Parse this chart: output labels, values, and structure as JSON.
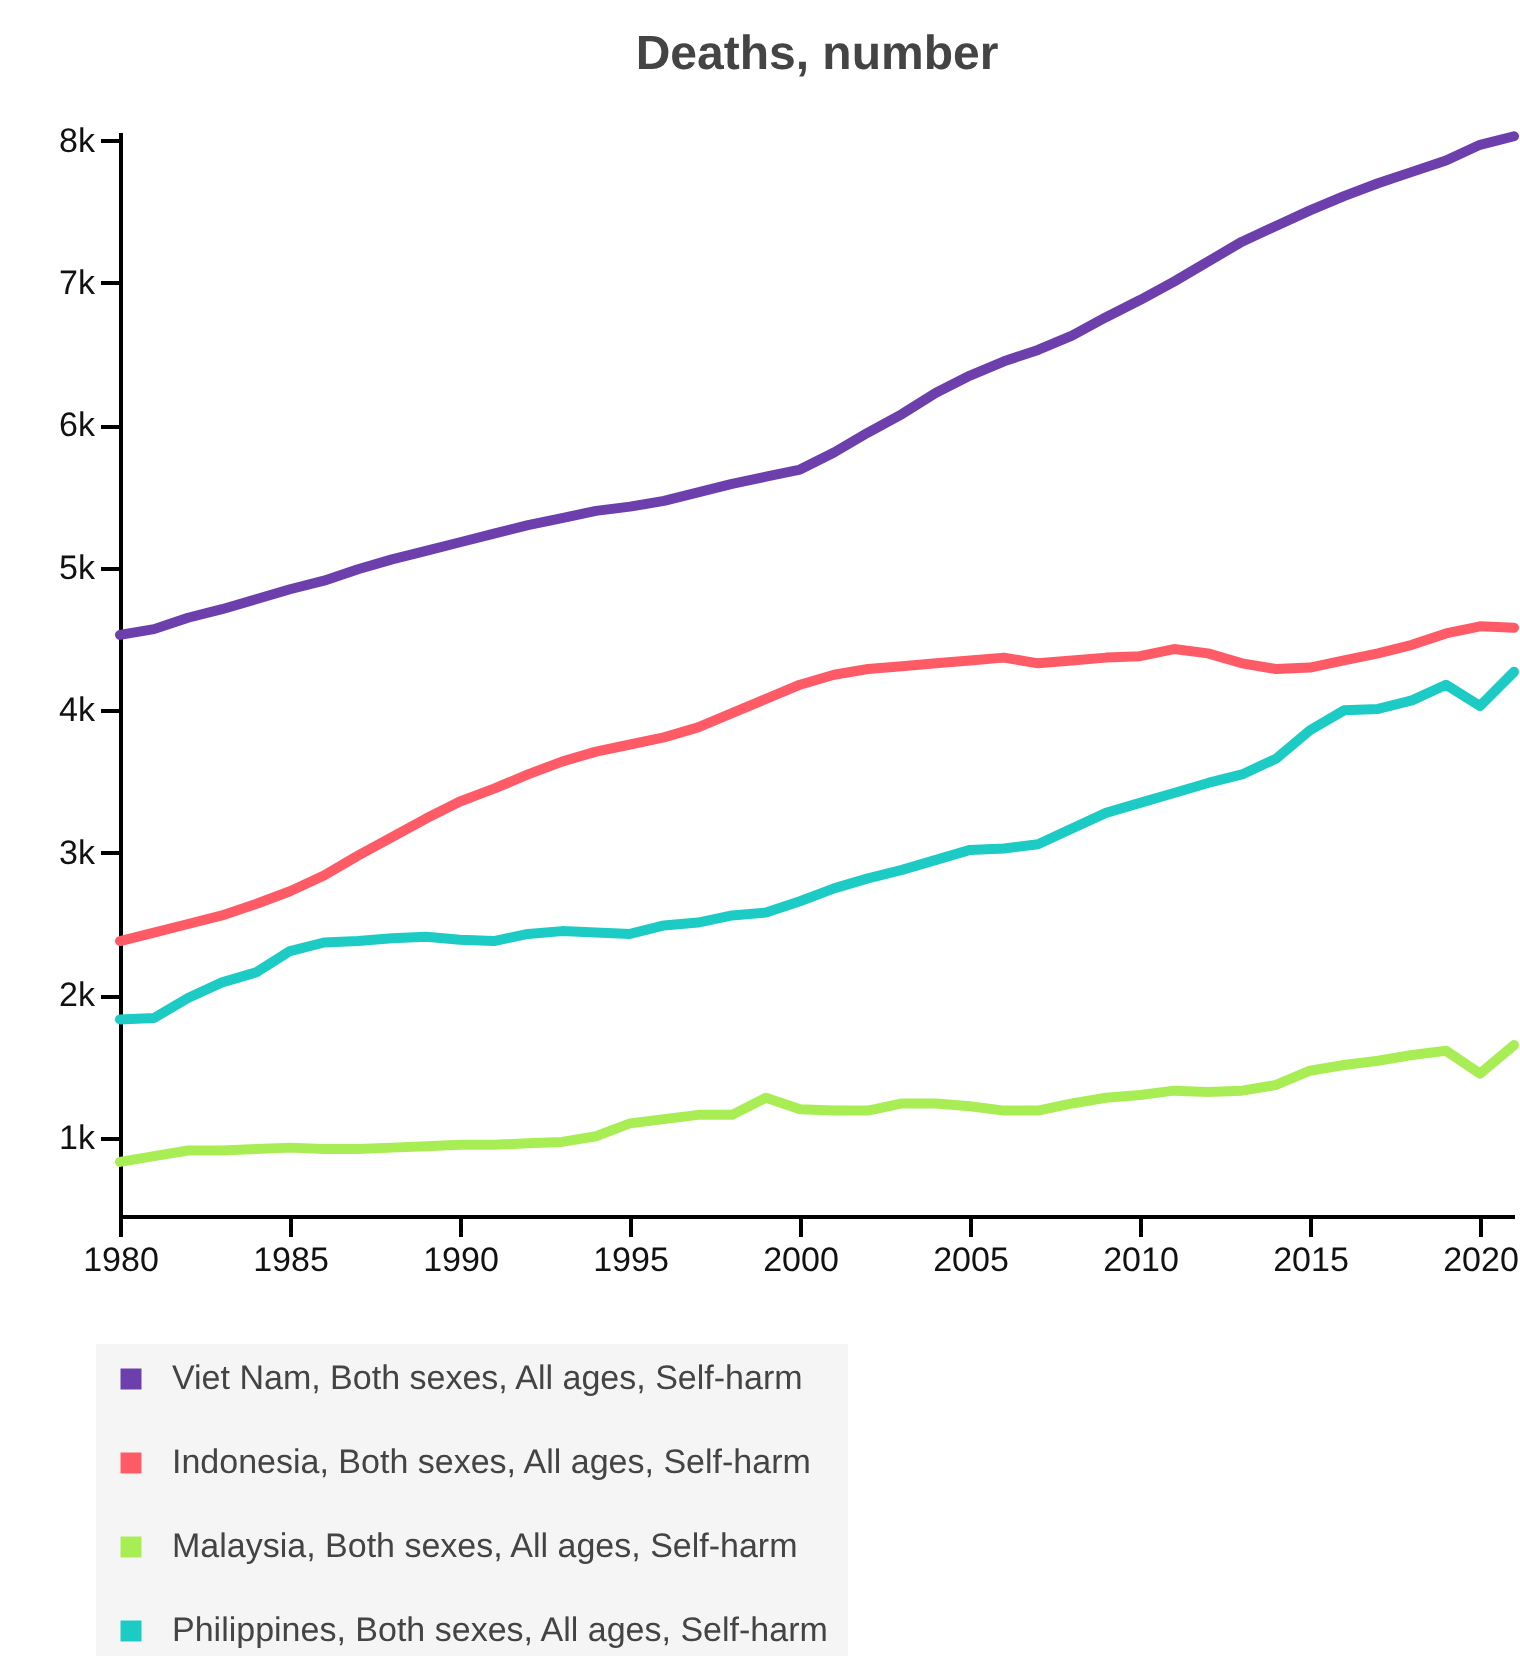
{
  "chart_data": {
    "type": "line",
    "title": "Deaths, number",
    "x": [
      1980,
      1981,
      1982,
      1983,
      1984,
      1985,
      1986,
      1987,
      1988,
      1989,
      1990,
      1991,
      1992,
      1993,
      1994,
      1995,
      1996,
      1997,
      1998,
      1999,
      2000,
      2001,
      2002,
      2003,
      2004,
      2005,
      2006,
      2007,
      2008,
      2009,
      2010,
      2011,
      2012,
      2013,
      2014,
      2015,
      2016,
      2017,
      2018,
      2019,
      2020,
      2021
    ],
    "xlim": [
      1980,
      2021
    ],
    "xticks": [
      1980,
      1985,
      1990,
      1995,
      2000,
      2005,
      2010,
      2015,
      2020
    ],
    "ylim": [
      450,
      8060
    ],
    "yticks": [
      {
        "value": 1000,
        "label": "1k"
      },
      {
        "value": 2000,
        "label": "2k"
      },
      {
        "value": 3000,
        "label": "3k"
      },
      {
        "value": 4000,
        "label": "4k"
      },
      {
        "value": 5000,
        "label": "5k"
      },
      {
        "value": 6000,
        "label": "6k"
      },
      {
        "value": 7000,
        "label": "7k"
      },
      {
        "value": 8000,
        "label": "8k"
      }
    ],
    "grid": false,
    "legend": "bottom",
    "line_style": "solid",
    "marker": "none",
    "series": [
      {
        "name": "Viet Nam, Both sexes, All ages, Self-harm",
        "color": "#6d3fad",
        "values": [
          4530,
          4570,
          4650,
          4710,
          4780,
          4850,
          4910,
          4990,
          5060,
          5120,
          5180,
          5240,
          5300,
          5350,
          5400,
          5430,
          5470,
          5530,
          5590,
          5640,
          5690,
          5810,
          5950,
          6080,
          6230,
          6350,
          6450,
          6530,
          6630,
          6760,
          6880,
          7010,
          7150,
          7290,
          7400,
          7510,
          7610,
          7700,
          7780,
          7860,
          7970,
          8030
        ]
      },
      {
        "name": "Indonesia, Both sexes, All ages, Self-harm",
        "color": "#ff5b67",
        "values": [
          2380,
          2440,
          2500,
          2560,
          2640,
          2730,
          2840,
          2980,
          3110,
          3240,
          3360,
          3450,
          3550,
          3640,
          3710,
          3760,
          3810,
          3880,
          3980,
          4080,
          4180,
          4250,
          4290,
          4310,
          4330,
          4350,
          4370,
          4330,
          4350,
          4370,
          4380,
          4430,
          4400,
          4330,
          4290,
          4300,
          4350,
          4400,
          4460,
          4540,
          4590,
          4580
        ]
      },
      {
        "name": "Malaysia, Both sexes, All ages, Self-harm",
        "color": "#a9ed55",
        "values": [
          830,
          870,
          910,
          910,
          920,
          930,
          920,
          920,
          930,
          940,
          950,
          950,
          960,
          970,
          1010,
          1100,
          1130,
          1160,
          1160,
          1280,
          1200,
          1190,
          1190,
          1240,
          1240,
          1220,
          1190,
          1190,
          1240,
          1280,
          1300,
          1330,
          1320,
          1330,
          1370,
          1470,
          1510,
          1540,
          1580,
          1610,
          1450,
          1650
        ]
      },
      {
        "name": "Philippines, Both sexes, All ages, Self-harm",
        "color": "#1ccbc3",
        "values": [
          1830,
          1840,
          1980,
          2090,
          2160,
          2310,
          2370,
          2380,
          2400,
          2410,
          2390,
          2380,
          2430,
          2450,
          2440,
          2430,
          2490,
          2510,
          2560,
          2580,
          2660,
          2750,
          2820,
          2880,
          2950,
          3020,
          3030,
          3060,
          3170,
          3280,
          3350,
          3420,
          3490,
          3550,
          3660,
          3860,
          4000,
          4010,
          4070,
          4180,
          4030,
          4270
        ]
      }
    ]
  }
}
